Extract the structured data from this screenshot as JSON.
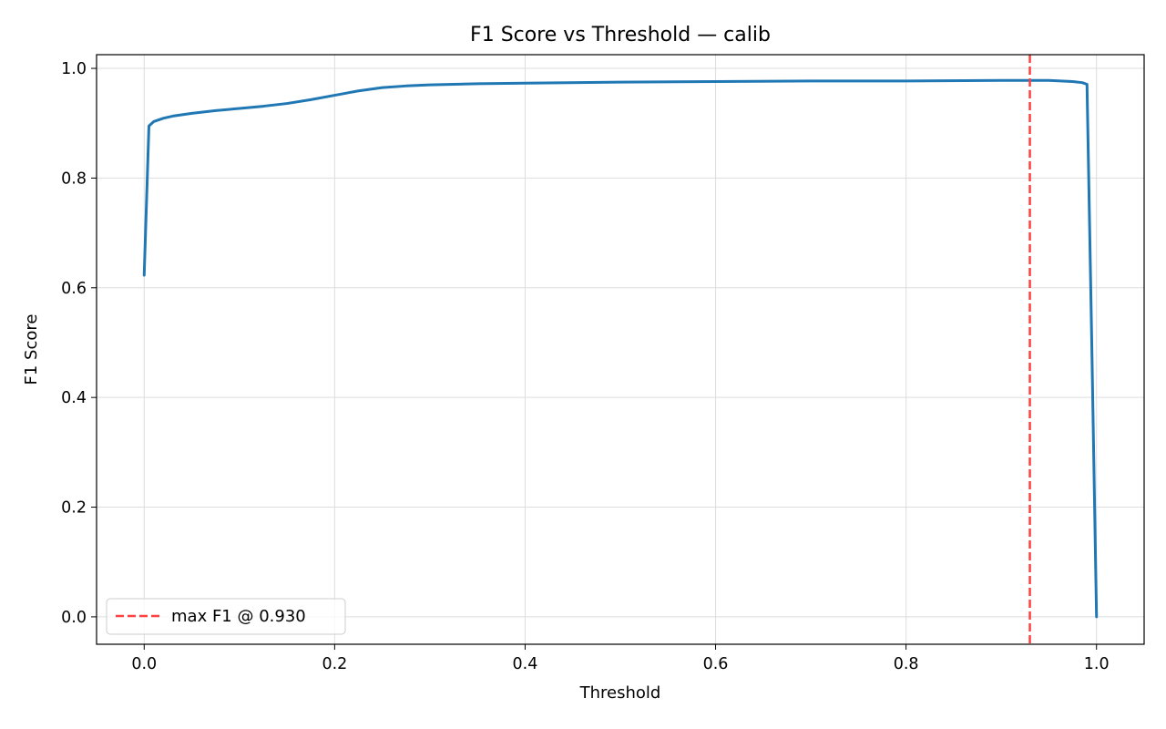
{
  "chart_data": {
    "type": "line",
    "title": "F1 Score vs Threshold — calib",
    "xlabel": "Threshold",
    "ylabel": "F1 Score",
    "xlim": [
      -0.05,
      1.05
    ],
    "ylim": [
      -0.05,
      1.025
    ],
    "xticks": [
      0.0,
      0.2,
      0.4,
      0.6,
      0.8,
      1.0
    ],
    "xtick_labels": [
      "0.0",
      "0.2",
      "0.4",
      "0.6",
      "0.8",
      "1.0"
    ],
    "yticks": [
      0.0,
      0.2,
      0.4,
      0.6,
      0.8,
      1.0
    ],
    "ytick_labels": [
      "0.0",
      "0.2",
      "0.4",
      "0.6",
      "0.8",
      "1.0"
    ],
    "grid": true,
    "legend_position": "lower-left",
    "series": [
      {
        "color": "#1f77b4",
        "x": [
          0.0,
          0.005,
          0.01,
          0.02,
          0.03,
          0.05,
          0.075,
          0.1,
          0.125,
          0.15,
          0.175,
          0.2,
          0.225,
          0.25,
          0.275,
          0.3,
          0.35,
          0.4,
          0.5,
          0.6,
          0.7,
          0.8,
          0.9,
          0.95,
          0.975,
          0.985,
          0.99,
          0.995,
          1.0
        ],
        "y": [
          0.623,
          0.895,
          0.903,
          0.909,
          0.913,
          0.918,
          0.923,
          0.927,
          0.931,
          0.936,
          0.943,
          0.951,
          0.959,
          0.965,
          0.968,
          0.97,
          0.972,
          0.973,
          0.975,
          0.976,
          0.977,
          0.977,
          0.978,
          0.978,
          0.976,
          0.974,
          0.971,
          0.5,
          0.0
        ]
      }
    ],
    "vline": {
      "name": "max F1 @ 0.930",
      "x": 0.93,
      "color": "#ff4040",
      "style": "dashed"
    }
  }
}
